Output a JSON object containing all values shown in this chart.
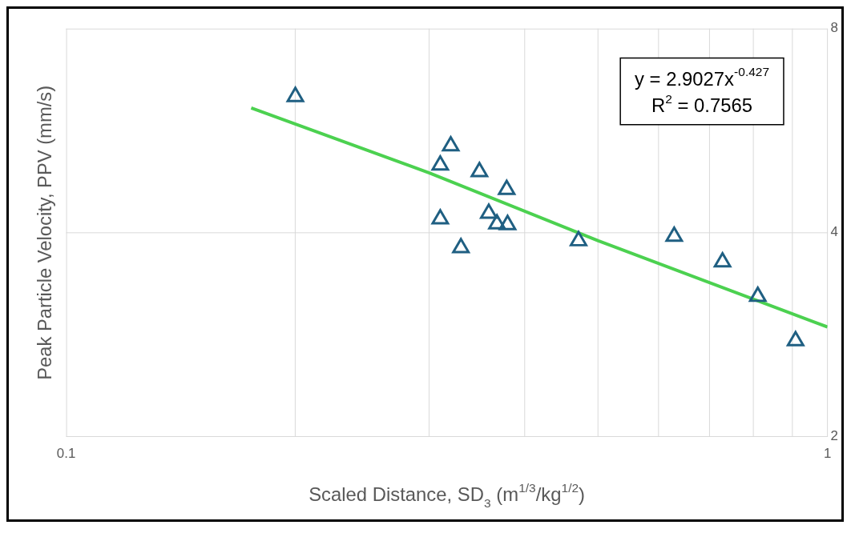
{
  "chart_data": {
    "type": "scatter",
    "xlabel": "Scaled Distance, SD$_{3}$ (m$^{1/3}$/kg$^{1/2}$)",
    "ylabel": "Peak Particle Velocity, PPV (mm/s)",
    "log": "xy",
    "grid": true,
    "legend": false,
    "marker": "triangle",
    "xlim": [
      0.1,
      1
    ],
    "xticks": [
      0.1,
      {
        "value": 0.2,
        "label": null
      },
      {
        "value": 0.3,
        "label": null
      },
      {
        "value": 0.4,
        "label": null
      },
      {
        "value": 0.5,
        "label": null
      },
      {
        "value": 0.6,
        "label": null
      },
      {
        "value": 0.7,
        "label": null
      },
      {
        "value": 0.8,
        "label": null
      },
      {
        "value": 0.9,
        "label": null
      },
      1
    ],
    "ylim": [
      2,
      8
    ],
    "yticks": [
      2,
      4,
      8
    ],
    "series": [
      {
        "type": "scatter",
        "color": "#1f5f82",
        "x": [
          0.2,
          0.32,
          0.31,
          0.349,
          0.379,
          0.31,
          0.359,
          0.368,
          0.38,
          0.33,
          0.471,
          0.629,
          0.728,
          0.81,
          0.908
        ],
        "values": [
          6.35,
          5.37,
          5.03,
          4.92,
          4.63,
          4.19,
          4.27,
          4.12,
          4.11,
          3.8,
          3.89,
          3.95,
          3.62,
          3.22,
          2.77
        ]
      },
      {
        "type": "line",
        "color": "#4cd150",
        "marker": "none",
        "x": [
          0.175,
          0.3,
          0.5,
          1
        ],
        "values": [
          6.11,
          4.9,
          3.89,
          2.9027
        ]
      }
    ],
    "annotations": [
      "y = 2.9027x$^{-0.427}$",
      "R$^{2}$ = 0.7565"
    ]
  }
}
